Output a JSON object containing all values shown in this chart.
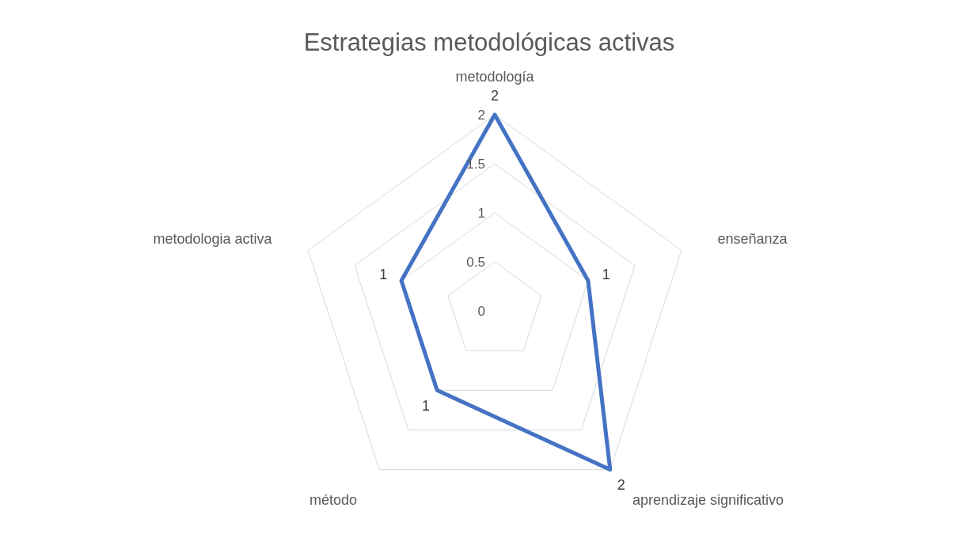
{
  "chart_data": {
    "type": "radar",
    "title": "Estrategias metodológicas activas",
    "categories": [
      "metodología",
      "enseñanza",
      "aprendizaje significativo",
      "método",
      "metodologia activa"
    ],
    "series": [
      {
        "color": "#4472c4",
        "values": [
          2,
          1,
          2,
          1,
          1
        ]
      }
    ],
    "ylim": [
      0,
      2
    ],
    "yticks": [
      0,
      0.5,
      1,
      1.5,
      2
    ],
    "grid": true,
    "data_labels": true,
    "marker": "none",
    "legend": false
  }
}
